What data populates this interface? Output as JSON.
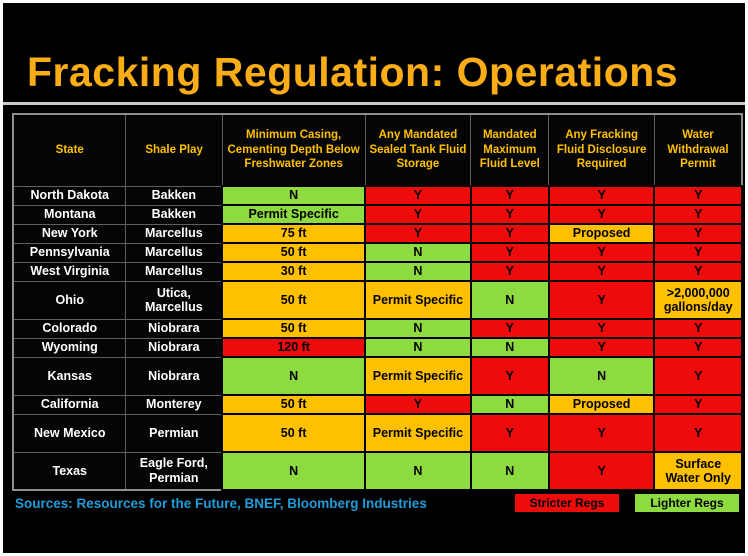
{
  "title": "Fracking Regulation: Operations",
  "colors": {
    "title": "#FBAD18",
    "header_text": "#FFC000",
    "label_text": "#FFFFFF",
    "sources_text": "#1F9CD8",
    "red": "#EE0B0B",
    "green": "#8EDA41",
    "orange": "#FFC000"
  },
  "table": {
    "columns": [
      "State",
      "Shale Play",
      "Minimum Casing, Cementing Depth Below Freshwater Zones",
      "Any Mandated Sealed Tank Fluid Storage",
      "Mandated Maximum Fluid Level",
      "Any Fracking Fluid Disclosure Required",
      "Water Withdrawal Permit"
    ],
    "column_widths_pct": [
      15.5,
      13.2,
      19.6,
      14.5,
      10.7,
      14.5,
      12.0
    ],
    "rows": [
      {
        "state": "North Dakota",
        "shale_play": "Bakken",
        "tall": false,
        "cells": [
          {
            "text": "N",
            "color": "green"
          },
          {
            "text": "Y",
            "color": "red"
          },
          {
            "text": "Y",
            "color": "red"
          },
          {
            "text": "Y",
            "color": "red"
          },
          {
            "text": "Y",
            "color": "red"
          }
        ]
      },
      {
        "state": "Montana",
        "shale_play": "Bakken",
        "tall": false,
        "cells": [
          {
            "text": "Permit Specific",
            "color": "green"
          },
          {
            "text": "Y",
            "color": "red"
          },
          {
            "text": "Y",
            "color": "red"
          },
          {
            "text": "Y",
            "color": "red"
          },
          {
            "text": "Y",
            "color": "red"
          }
        ]
      },
      {
        "state": "New York",
        "shale_play": "Marcellus",
        "tall": false,
        "cells": [
          {
            "text": "75 ft",
            "color": "orange"
          },
          {
            "text": "Y",
            "color": "red"
          },
          {
            "text": "Y",
            "color": "red"
          },
          {
            "text": "Proposed",
            "color": "orange"
          },
          {
            "text": "Y",
            "color": "red"
          }
        ]
      },
      {
        "state": "Pennsylvania",
        "shale_play": "Marcellus",
        "tall": false,
        "cells": [
          {
            "text": "50 ft",
            "color": "orange"
          },
          {
            "text": "N",
            "color": "green"
          },
          {
            "text": "Y",
            "color": "red"
          },
          {
            "text": "Y",
            "color": "red"
          },
          {
            "text": "Y",
            "color": "red"
          }
        ]
      },
      {
        "state": "West Virginia",
        "shale_play": "Marcellus",
        "tall": false,
        "cells": [
          {
            "text": "30 ft",
            "color": "orange"
          },
          {
            "text": "N",
            "color": "green"
          },
          {
            "text": "Y",
            "color": "red"
          },
          {
            "text": "Y",
            "color": "red"
          },
          {
            "text": "Y",
            "color": "red"
          }
        ]
      },
      {
        "state": "Ohio",
        "shale_play": "Utica, Marcellus",
        "tall": true,
        "cells": [
          {
            "text": "50 ft",
            "color": "orange"
          },
          {
            "text": "Permit Specific",
            "color": "orange"
          },
          {
            "text": "N",
            "color": "green"
          },
          {
            "text": "Y",
            "color": "red"
          },
          {
            "text": ">2,000,000 gallons/day",
            "color": "orange"
          }
        ]
      },
      {
        "state": "Colorado",
        "shale_play": "Niobrara",
        "tall": false,
        "cells": [
          {
            "text": "50 ft",
            "color": "orange"
          },
          {
            "text": "N",
            "color": "green"
          },
          {
            "text": "Y",
            "color": "red"
          },
          {
            "text": "Y",
            "color": "red"
          },
          {
            "text": "Y",
            "color": "red"
          }
        ]
      },
      {
        "state": "Wyoming",
        "shale_play": "Niobrara",
        "tall": false,
        "cells": [
          {
            "text": "120 ft",
            "color": "red"
          },
          {
            "text": "N",
            "color": "green"
          },
          {
            "text": "N",
            "color": "green"
          },
          {
            "text": "Y",
            "color": "red"
          },
          {
            "text": "Y",
            "color": "red"
          }
        ]
      },
      {
        "state": "Kansas",
        "shale_play": "Niobrara",
        "tall": true,
        "cells": [
          {
            "text": "N",
            "color": "green"
          },
          {
            "text": "Permit Specific",
            "color": "orange"
          },
          {
            "text": "Y",
            "color": "red"
          },
          {
            "text": "N",
            "color": "green"
          },
          {
            "text": "Y",
            "color": "red"
          }
        ]
      },
      {
        "state": "California",
        "shale_play": "Monterey",
        "tall": false,
        "cells": [
          {
            "text": "50 ft",
            "color": "orange"
          },
          {
            "text": "Y",
            "color": "red"
          },
          {
            "text": "N",
            "color": "green"
          },
          {
            "text": "Proposed",
            "color": "orange"
          },
          {
            "text": "Y",
            "color": "red"
          }
        ]
      },
      {
        "state": "New Mexico",
        "shale_play": "Permian",
        "tall": true,
        "cells": [
          {
            "text": "50 ft",
            "color": "orange"
          },
          {
            "text": "Permit Specific",
            "color": "orange"
          },
          {
            "text": "Y",
            "color": "red"
          },
          {
            "text": "Y",
            "color": "red"
          },
          {
            "text": "Y",
            "color": "red"
          }
        ]
      },
      {
        "state": "Texas",
        "shale_play": "Eagle Ford, Permian",
        "tall": true,
        "cells": [
          {
            "text": "N",
            "color": "green"
          },
          {
            "text": "N",
            "color": "green"
          },
          {
            "text": "N",
            "color": "green"
          },
          {
            "text": "Y",
            "color": "red"
          },
          {
            "text": "Surface Water Only",
            "color": "orange"
          }
        ]
      }
    ]
  },
  "footer": {
    "sources": "Sources: Resources for the Future, BNEF, Bloomberg Industries",
    "legend": [
      {
        "label": "Stricter Regs",
        "color": "red"
      },
      {
        "label": "Lighter Regs",
        "color": "green"
      }
    ]
  }
}
